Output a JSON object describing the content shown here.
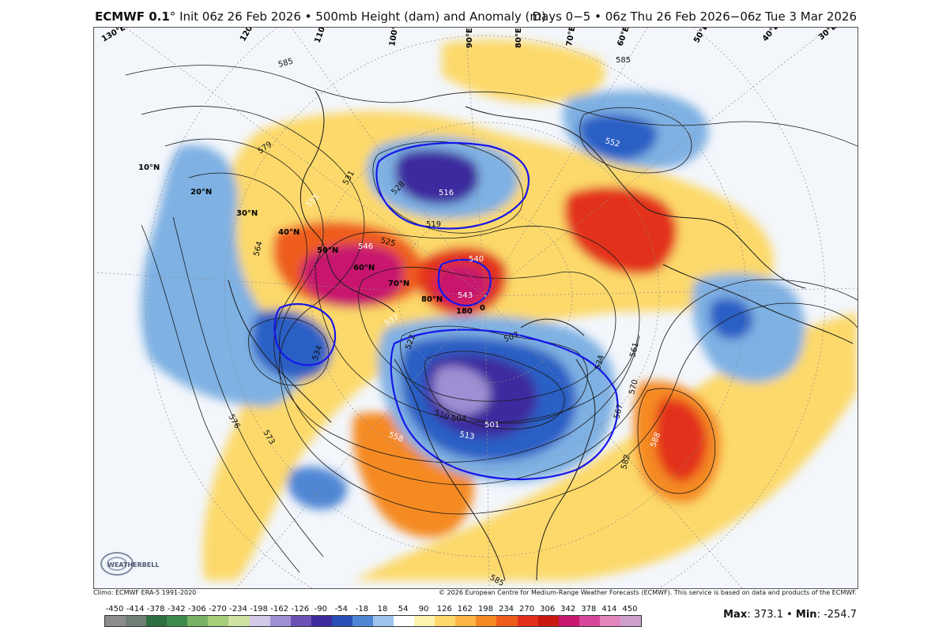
{
  "header": {
    "model": "ECMWF 0.1",
    "degree": "°",
    "init": "Init 06z 26 Feb 2026",
    "field": "500mb Height (dam) and Anomaly (m)",
    "valid": "Days 0−5 • 06z Thu 26 Feb 2026−06z Tue 3 Mar 2026"
  },
  "map": {
    "lat_labels": [
      "10°N",
      "20°N",
      "30°N",
      "40°N",
      "50°N",
      "60°N",
      "70°N",
      "80°N"
    ],
    "lon_labels": [
      "130°E",
      "120°E",
      "110°E",
      "100°E",
      "90°E",
      "80°E",
      "70°E",
      "60°E",
      "50°E",
      "40°E",
      "30°E",
      "180",
      "0"
    ],
    "contour_labels_black": [
      "585",
      "579",
      "564",
      "576",
      "573",
      "534",
      "525",
      "519",
      "531",
      "528",
      "510",
      "504",
      "522",
      "507",
      "534",
      "561",
      "570",
      "567",
      "582",
      "585",
      "585"
    ],
    "contour_labels_white": [
      "555",
      "546",
      "537",
      "540",
      "543",
      "552",
      "588",
      "558",
      "513",
      "501",
      "516"
    ],
    "colors": {
      "strong_positive": "#c8186e",
      "positive": "#e3301c",
      "moderate_positive": "#f58a24",
      "weak_positive": "#fcd96a",
      "weak_negative": "#7fb1e3",
      "negative": "#2a5fc4",
      "strong_negative": "#3c2c9e",
      "zero_contour": "#1616e8"
    }
  },
  "footer": {
    "climo": "Climo: ECMWF ERA-5 1991-2020",
    "copyright": "© 2026 European Centre for Medium-Range Weather Forecasts (ECMWF). This service is based on data and products of the ECMWF.",
    "logo_text": "WEATHERBELL"
  },
  "colorbar": {
    "ticks": [
      "-450",
      "-414",
      "-378",
      "-342",
      "-306",
      "-270",
      "-234",
      "-198",
      "-162",
      "-126",
      "-90",
      "-54",
      "-18",
      "18",
      "54",
      "90",
      "126",
      "162",
      "198",
      "234",
      "270",
      "306",
      "342",
      "378",
      "414",
      "450"
    ],
    "colors": [
      "#8c8c8c",
      "#6f7f73",
      "#2e6e40",
      "#3f8a4d",
      "#78b364",
      "#a6cf7c",
      "#cfe3a3",
      "#d3c8e8",
      "#9e8ed3",
      "#6a52b6",
      "#3c2c9e",
      "#2a4fb6",
      "#4f86d4",
      "#9cc4ec",
      "#ffffff",
      "#fdf2b0",
      "#fcd96a",
      "#fbb646",
      "#f58a24",
      "#ee5d1b",
      "#e3301c",
      "#c9180f",
      "#c8186e",
      "#d9479a",
      "#e487be",
      "#cfa0cc"
    ]
  },
  "stats": {
    "max_label": "Max",
    "max_value": "373.1",
    "min_label": "Min",
    "min_value": "-254.7"
  }
}
